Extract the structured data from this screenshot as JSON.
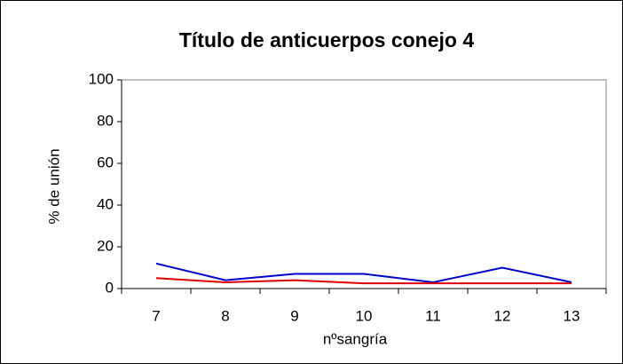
{
  "chart_data": {
    "type": "line",
    "title": "Título de anticuerpos conejo 4",
    "x_label": "nºsangría",
    "y_label": "% de unión",
    "categories": [
      "7",
      "8",
      "9",
      "10",
      "11",
      "12",
      "13"
    ],
    "series": [
      {
        "color": "#0000cc",
        "values": [
          12,
          4,
          7,
          7,
          3,
          10,
          3
        ]
      },
      {
        "color": "#dd0000",
        "values": [
          5,
          3,
          4,
          2.5,
          2.5,
          2.5,
          2.5
        ]
      }
    ],
    "ylim": [
      0,
      100
    ],
    "yticks": [
      0,
      20,
      40,
      60,
      80,
      100
    ],
    "grid": false
  }
}
